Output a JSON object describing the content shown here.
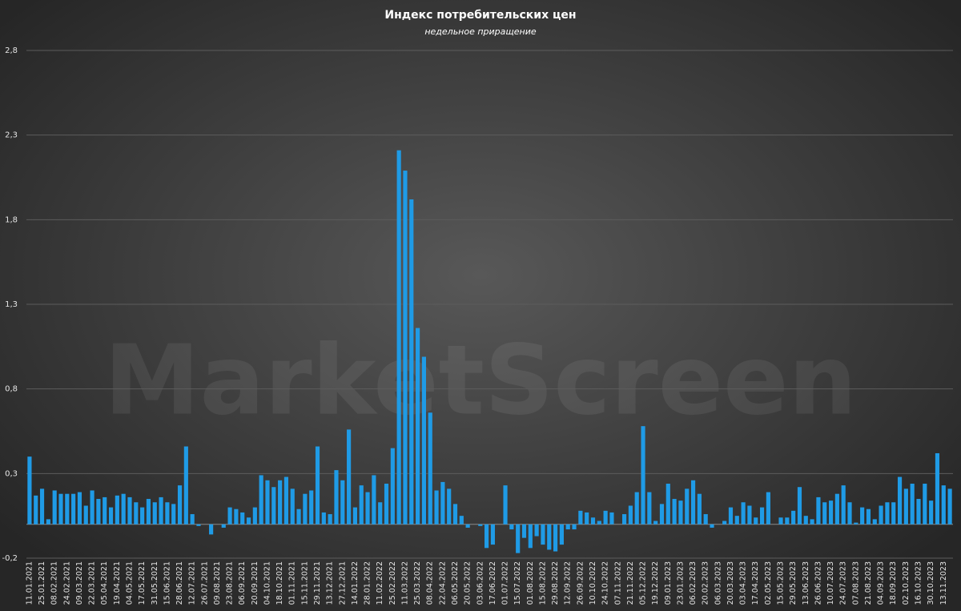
{
  "chart_data": {
    "type": "bar",
    "title": "Индекс потребительских цен",
    "subtitle": "недельное приращение",
    "watermark": "MarketScreen",
    "color": "#1f9be6",
    "grid": true,
    "ylim": [
      -0.2,
      2.8
    ],
    "yticks": [
      {
        "value": -0.2,
        "label": "-0,2"
      },
      {
        "value": 0.3,
        "label": "0,3"
      },
      {
        "value": 0.8,
        "label": "0,8"
      },
      {
        "value": 1.3,
        "label": "1,3"
      },
      {
        "value": 1.8,
        "label": "1,8"
      },
      {
        "value": 2.3,
        "label": "2,3"
      },
      {
        "value": 2.8,
        "label": "2,8"
      }
    ],
    "categories": [
      "11.01.2021",
      null,
      "25.01.2021",
      null,
      "08.02.2021",
      null,
      "24.02.2021",
      null,
      "09.03.2021",
      null,
      "22.03.2021",
      null,
      "05.04.2021",
      null,
      "19.04.2021",
      null,
      "04.05.2021",
      null,
      "17.05.2021",
      null,
      "31.05.2021",
      null,
      "15.06.2021",
      null,
      "28.06.2021",
      null,
      "12.07.2021",
      null,
      "26.07.2021",
      null,
      "09.08.2021",
      null,
      "23.08.2021",
      null,
      "06.09.2021",
      null,
      "20.09.2021",
      null,
      "04.10.2021",
      null,
      "18.10.2021",
      null,
      "01.11.2021",
      null,
      "15.11.2021",
      null,
      "29.11.2021",
      null,
      "13.12.2021",
      null,
      "27.12.2021",
      null,
      "14.01.2022",
      null,
      "28.01.2022",
      null,
      "11.02.2022",
      null,
      "25.02.2022",
      null,
      "11.03.2022",
      null,
      "25.03.2022",
      null,
      "08.04.2022",
      null,
      "22.04.2022",
      null,
      "06.05.2022",
      null,
      "20.05.2022",
      null,
      "03.06.2022",
      null,
      "17.06.2022",
      null,
      "01.07.2022",
      null,
      "15.07.2022",
      null,
      "01.08.2022",
      null,
      "15.08.2022",
      null,
      "29.08.2022",
      null,
      "12.09.2022",
      null,
      "26.09.2022",
      null,
      "10.10.2022",
      null,
      "24.10.2022",
      null,
      "07.11.2022",
      null,
      "21.11.2022",
      null,
      "05.12.2022",
      null,
      "19.12.2022",
      null,
      "09.01.2023",
      null,
      "23.01.2023",
      null,
      "06.02.2023",
      null,
      "20.02.2023",
      null,
      "06.03.2023",
      null,
      "20.03.2023",
      null,
      "03.04.2023",
      null,
      "17.04.2023",
      null,
      "02.05.2023",
      null,
      "15.05.2023",
      null,
      "29.05.2023",
      null,
      "13.06.2023",
      null,
      "26.06.2023",
      null,
      "10.07.2023",
      null,
      "24.07.2023",
      null,
      "07.08.2023",
      null,
      "21.08.2023",
      null,
      "04.09.2023",
      null,
      "18.09.2023",
      null,
      "02.10.2023",
      null,
      "16.10.2023",
      null,
      "30.10.2023",
      null,
      "13.11.2023",
      null
    ],
    "values": [
      0.4,
      0.17,
      0.21,
      0.03,
      0.2,
      0.18,
      0.18,
      0.18,
      0.19,
      0.11,
      0.2,
      0.15,
      0.16,
      0.1,
      0.17,
      0.18,
      0.16,
      0.13,
      0.1,
      0.15,
      0.13,
      0.16,
      0.13,
      0.12,
      0.23,
      0.46,
      0.06,
      -0.01,
      0.0,
      -0.06,
      0.0,
      -0.02,
      0.1,
      0.09,
      0.07,
      0.04,
      0.1,
      0.29,
      0.26,
      0.22,
      0.26,
      0.28,
      0.21,
      0.09,
      0.18,
      0.2,
      0.46,
      0.07,
      0.06,
      0.32,
      0.26,
      0.56,
      0.1,
      0.23,
      0.19,
      0.29,
      0.13,
      0.24,
      0.45,
      2.21,
      2.09,
      1.92,
      1.16,
      0.99,
      0.66,
      0.2,
      0.25,
      0.21,
      0.12,
      0.05,
      -0.02,
      0.0,
      -0.01,
      -0.14,
      -0.12,
      0.0,
      0.23,
      -0.03,
      -0.17,
      -0.08,
      -0.14,
      -0.07,
      -0.12,
      -0.15,
      -0.16,
      -0.12,
      -0.03,
      -0.03,
      0.08,
      0.07,
      0.04,
      0.02,
      0.08,
      0.07,
      0.0,
      0.06,
      0.11,
      0.19,
      0.58,
      0.19,
      0.02,
      0.12,
      0.24,
      0.15,
      0.14,
      0.21,
      0.26,
      0.18,
      0.06,
      -0.02,
      0.0,
      0.02,
      0.1,
      0.05,
      0.13,
      0.11,
      0.04,
      0.1,
      0.19,
      0.0,
      0.04,
      0.04,
      0.08,
      0.22,
      0.05,
      0.03,
      0.16,
      0.13,
      0.14,
      0.18,
      0.23,
      0.13,
      0.01,
      0.1,
      0.09,
      0.03,
      0.11,
      0.13,
      0.13,
      0.28,
      0.21,
      0.24,
      0.15,
      0.24,
      0.14,
      0.42,
      0.23,
      0.21
    ]
  }
}
